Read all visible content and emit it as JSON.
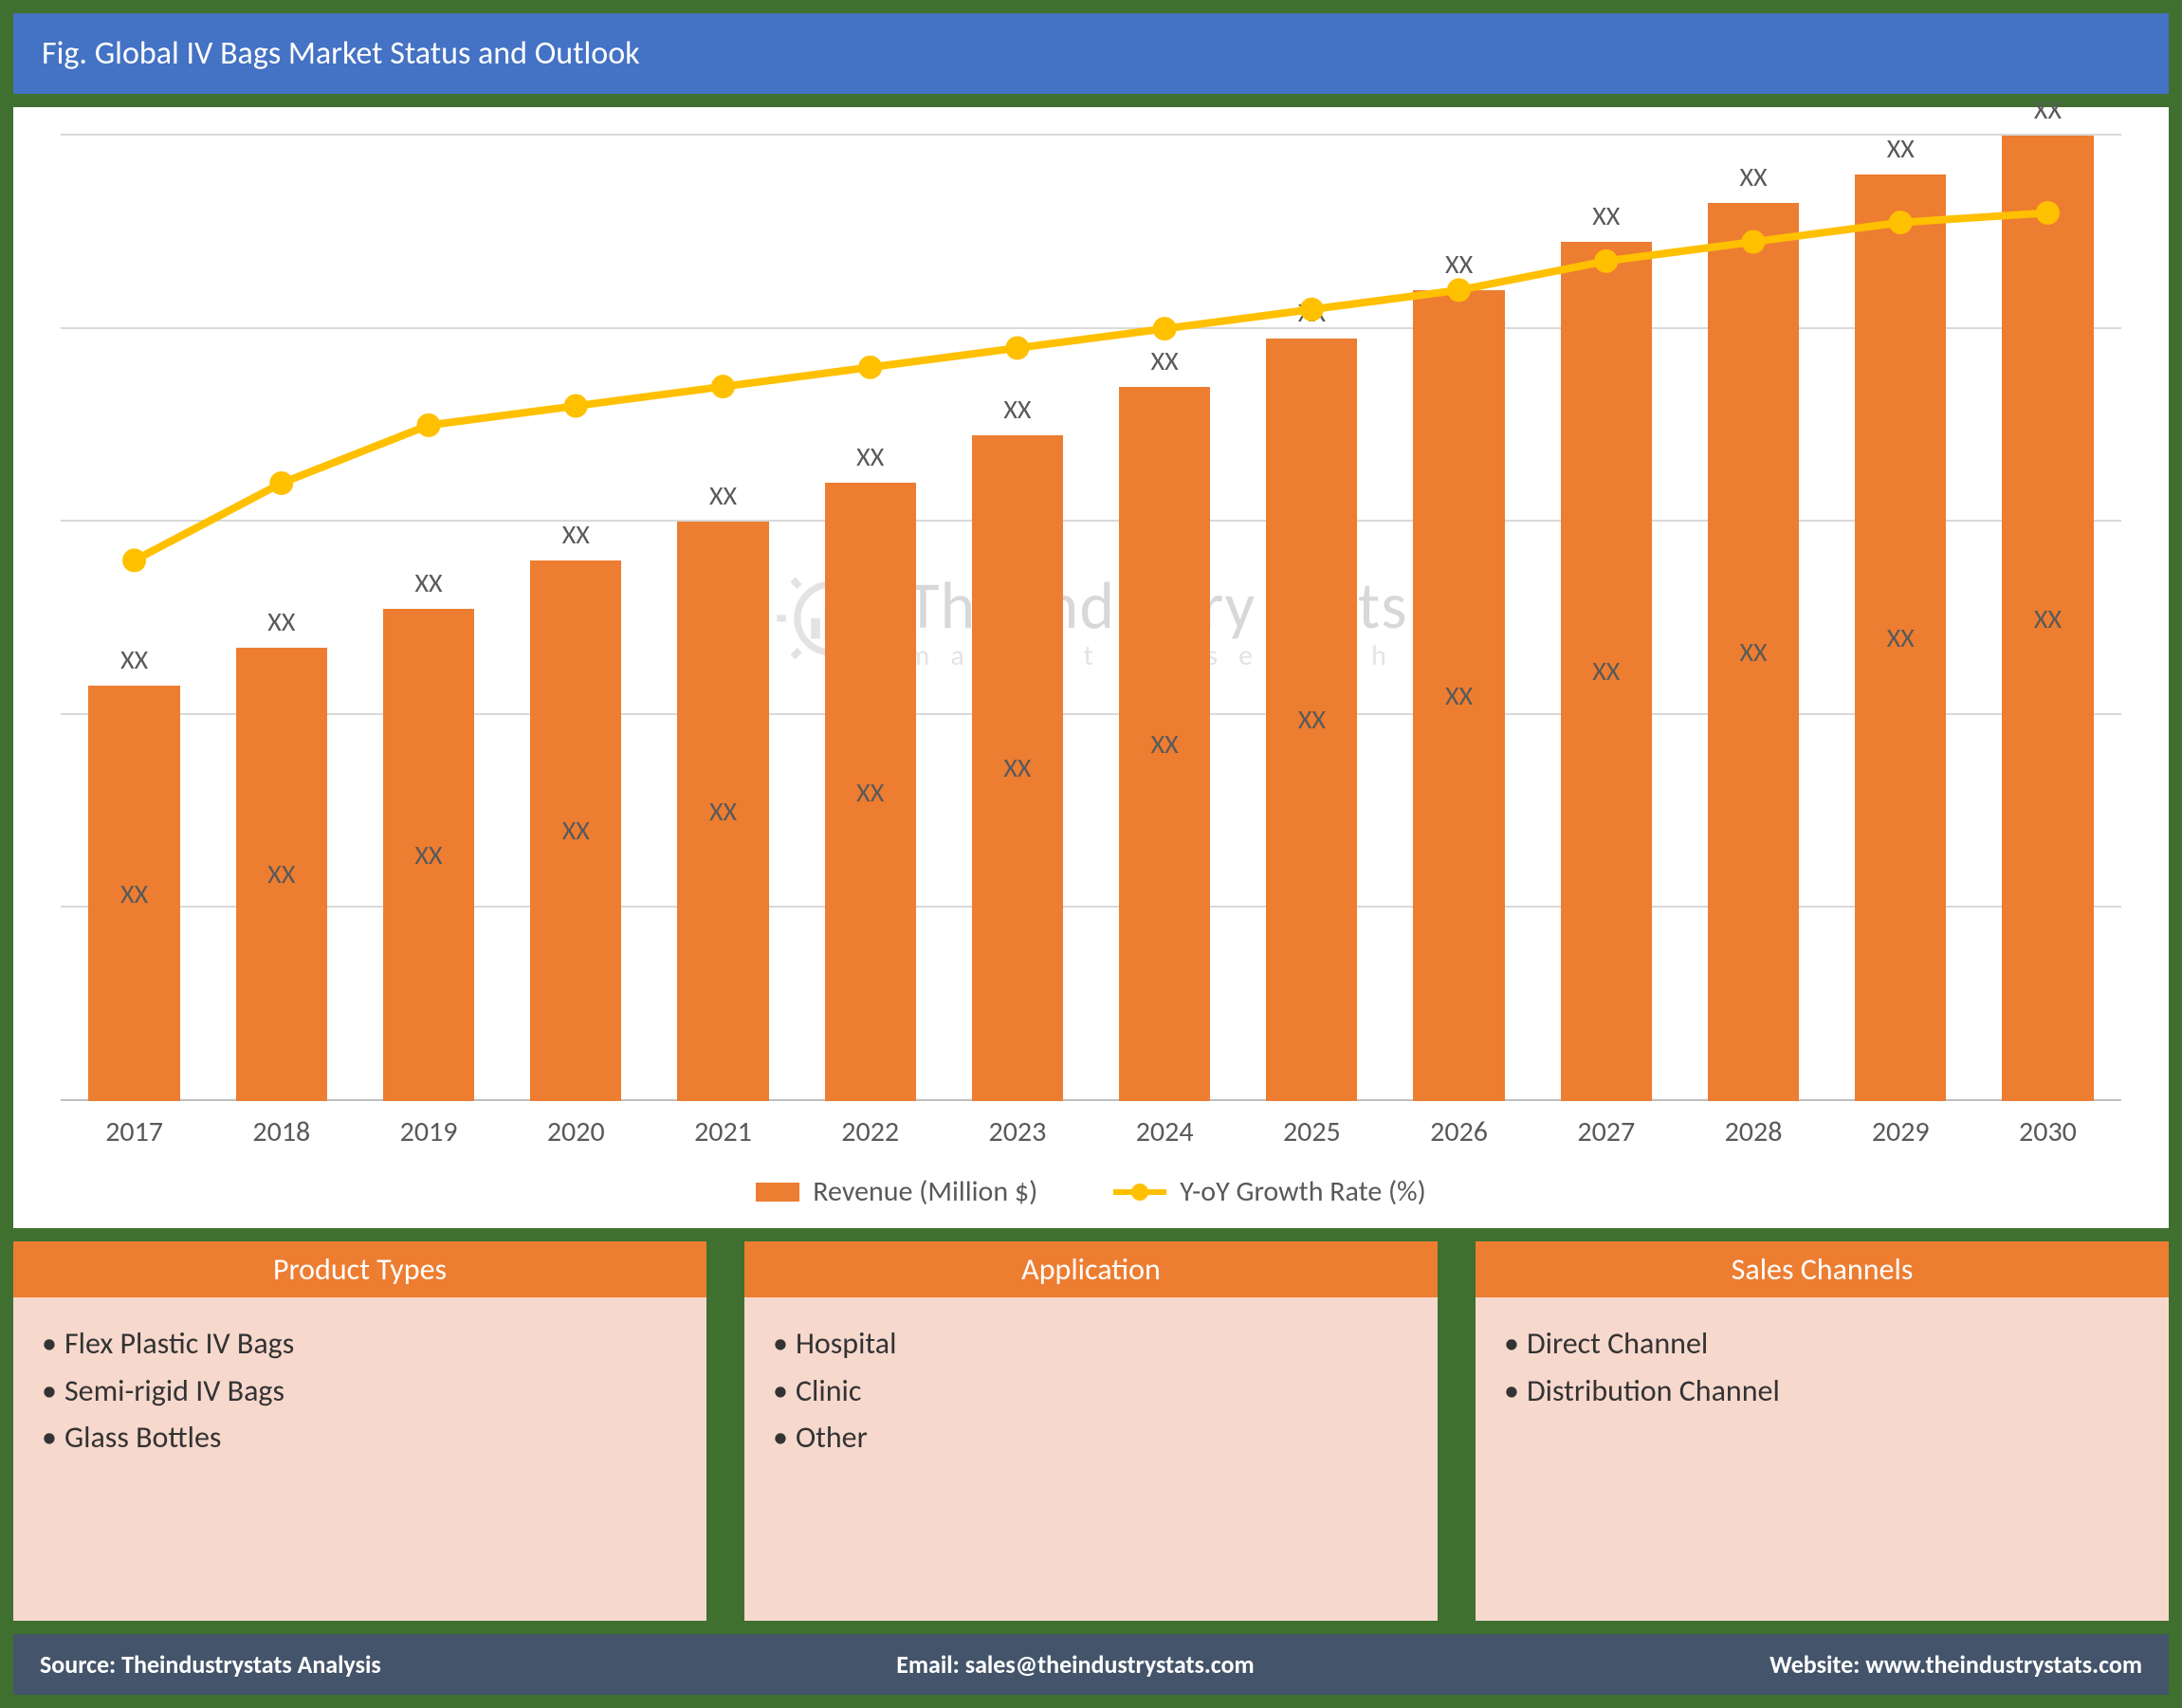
{
  "title": "Fig. Global IV Bags Market Status and Outlook",
  "chart": {
    "type": "bar+line",
    "categories": [
      "2017",
      "2018",
      "2019",
      "2020",
      "2021",
      "2022",
      "2023",
      "2024",
      "2025",
      "2026",
      "2027",
      "2028",
      "2029",
      "2030"
    ],
    "bar_series": {
      "name": "Revenue (Million $)",
      "color": "#ed7d31",
      "values_pct_of_max": [
        43,
        47,
        51,
        56,
        60,
        64,
        69,
        74,
        79,
        84,
        89,
        93,
        96,
        100
      ],
      "top_labels": [
        "XX",
        "XX",
        "XX",
        "XX",
        "XX",
        "XX",
        "XX",
        "XX",
        "XX",
        "XX",
        "XX",
        "XX",
        "XX",
        "XX"
      ],
      "inner_labels": [
        "XX",
        "XX",
        "XX",
        "XX",
        "XX",
        "XX",
        "XX",
        "XX",
        "XX",
        "XX",
        "XX",
        "XX",
        "XX",
        "XX"
      ]
    },
    "line_series": {
      "name": "Y-oY Growth Rate (%)",
      "color": "#ffc000",
      "marker_fill": "#ffc000",
      "values_pct_from_bottom": [
        56,
        64,
        70,
        72,
        74,
        76,
        78,
        80,
        82,
        84,
        87,
        89,
        91,
        92
      ]
    },
    "grid": {
      "lines_pct_from_bottom": [
        0,
        20,
        40,
        60,
        80,
        100
      ],
      "color": "#d9d9d9",
      "baseline_color": "#bfbfbf"
    },
    "background": "#ffffff",
    "bar_width_pct": 62,
    "label_color": "#595959",
    "label_fontsize": 28,
    "tick_fontsize": 30,
    "legend_fontsize": 30
  },
  "watermark": {
    "line1": "The Industry Stats",
    "line2": "market    research",
    "color_main": "#7f7f7f",
    "color_sub": "#a6a6a6"
  },
  "cards": [
    {
      "title": "Product Types",
      "items": [
        "Flex Plastic IV Bags",
        "Semi-rigid IV Bags",
        "Glass Bottles"
      ]
    },
    {
      "title": "Application",
      "items": [
        "Hospital",
        "Clinic",
        "Other"
      ]
    },
    {
      "title": "Sales Channels",
      "items": [
        "Direct Channel",
        "Distribution Channel"
      ]
    }
  ],
  "card_style": {
    "header_bg": "#ed7d31",
    "header_color": "#ffffff",
    "body_bg": "#f7d8cd",
    "body_color": "#333333"
  },
  "footer": {
    "source_label": "Source: ",
    "source_value": "Theindustrystats Analysis",
    "email_label": "Email: ",
    "email_value": "sales@theindustrystats.com",
    "website_label": "Website: ",
    "website_value": "www.theindustrystats.com",
    "bg": "#44546a",
    "color": "#ffffff"
  },
  "frame": {
    "bg": "#3f7030",
    "title_bg": "#4472c4",
    "title_color": "#ffffff"
  }
}
